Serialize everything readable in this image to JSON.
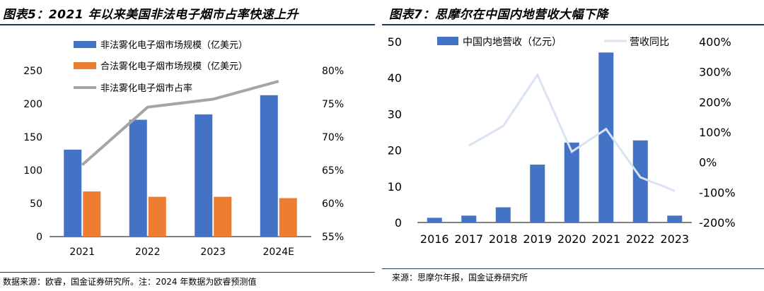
{
  "left": {
    "title": "图表5：2021 年以来美国非法电子烟市占率快速上升",
    "source": "数据来源：欧睿，国金证券研究所。注：2024 年数据为欧睿预测值",
    "colors": {
      "illicit": "#4472c4",
      "legal": "#ed7d31",
      "share": "#a5a5a5"
    }
  },
  "right": {
    "title": "图表7：思摩尔在中国内地营收大幅下降",
    "source": "来源：思摩尔年报，国金证券研究所",
    "colors": {
      "revenue": "#4472c4",
      "yoy": "#dae3f3"
    }
  },
  "chart_data": [
    {
      "type": "bar",
      "title": "2021 年以来美国非法电子烟市占率快速上升",
      "categories": [
        "2021",
        "2022",
        "2023",
        "2024E"
      ],
      "series": [
        {
          "name": "非法雾化电子烟市场规模（亿美元）",
          "kind": "bar",
          "axis": "left",
          "values": [
            131,
            176,
            184,
            213
          ]
        },
        {
          "name": "合法雾化电子烟市场规模（亿美元）",
          "kind": "bar",
          "axis": "left",
          "values": [
            68,
            60,
            60,
            58
          ]
        },
        {
          "name": "非法雾化电子烟市占率",
          "kind": "line",
          "axis": "right",
          "values": [
            65.8,
            74.5,
            75.7,
            78.4
          ]
        }
      ],
      "yticks_left": [
        "0",
        "50",
        "100",
        "150",
        "200",
        "250"
      ],
      "ylim_left": [
        0,
        250
      ],
      "yticks_right": [
        "55%",
        "60%",
        "65%",
        "70%",
        "75%",
        "80%"
      ],
      "ylim_right": [
        55,
        80
      ],
      "legend_position": "top"
    },
    {
      "type": "bar",
      "title": "思摩尔在中国内地营收大幅下降",
      "categories": [
        "2016",
        "2017",
        "2018",
        "2019",
        "2020",
        "2021",
        "2022",
        "2023"
      ],
      "series": [
        {
          "name": "中国内地营收（亿元）",
          "kind": "bar",
          "axis": "left",
          "values": [
            1.3,
            1.9,
            4.2,
            16.0,
            22.1,
            47.0,
            22.7,
            1.9
          ]
        },
        {
          "name": "营收同比",
          "kind": "line",
          "axis": "right",
          "values": [
            null,
            55,
            120,
            290,
            35,
            110,
            -50,
            -95
          ]
        }
      ],
      "yticks_left": [
        "0",
        "10",
        "20",
        "30",
        "40",
        "50"
      ],
      "ylim_left": [
        0,
        50
      ],
      "yticks_right": [
        "-200%",
        "-100%",
        "0%",
        "100%",
        "200%",
        "300%",
        "400%"
      ],
      "ylim_right": [
        -200,
        400
      ],
      "legend_position": "top"
    }
  ]
}
